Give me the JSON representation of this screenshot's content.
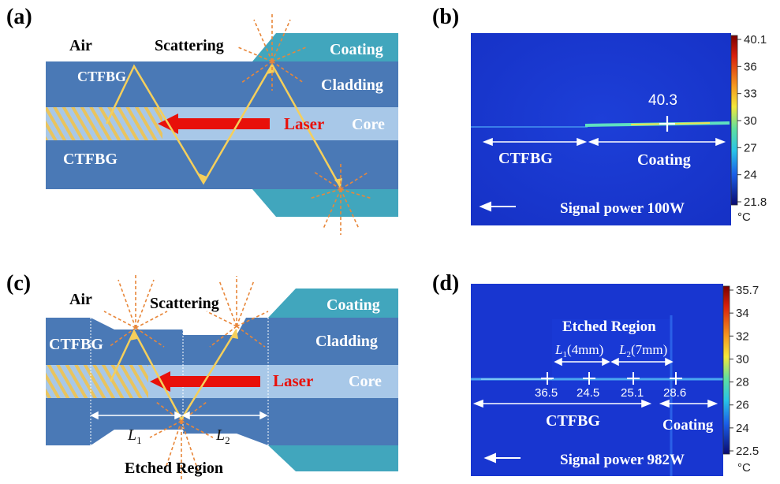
{
  "panel_a": {
    "tag": "(a)",
    "air": "Air",
    "scattering": "Scattering",
    "coating": "Coating",
    "cladding": "Cladding",
    "core": "Core",
    "laser": "Laser",
    "ctfbg_top": "CTFBG",
    "ctfbg_bottom": "CTFBG"
  },
  "panel_b": {
    "tag": "(b)",
    "peak_value": "40.3",
    "ctfbg": "CTFBG",
    "coating": "Coating",
    "signal": "Signal power 100W",
    "unit": "°C",
    "ticks": [
      "40.1",
      "36",
      "33",
      "30",
      "27",
      "24",
      "21.8"
    ]
  },
  "panel_c": {
    "tag": "(c)",
    "air": "Air",
    "scattering": "Scattering",
    "coating": "Coating",
    "cladding": "Cladding",
    "core": "Core",
    "laser": "Laser",
    "ctfbg": "CTFBG",
    "l1": "L",
    "l1_sub": "1",
    "l2": "L",
    "l2_sub": "2",
    "etched": "Etched Region"
  },
  "panel_d": {
    "tag": "(d)",
    "etched": "Etched Region",
    "l1": "L",
    "l1_sub": "1",
    "l1_len": "(4mm)",
    "l2": "L",
    "l2_sub": "2",
    "l2_len": "(7mm)",
    "v1": "36.5",
    "v2": "24.5",
    "v3": "25.1",
    "v4": "28.6",
    "ctfbg": "CTFBG",
    "coating": "Coating",
    "signal": "Signal power 982W",
    "unit": "°C",
    "ticks": [
      "35.7",
      "34",
      "32",
      "30",
      "28",
      "26",
      "24",
      "22.5"
    ]
  },
  "colors": {
    "cladding": "#4a79b6",
    "core": "#a8c8e8",
    "coating": "#41a6bd",
    "ray": "#f5cf5b",
    "laser": "#e8100a",
    "scatter": "#e8873a"
  }
}
